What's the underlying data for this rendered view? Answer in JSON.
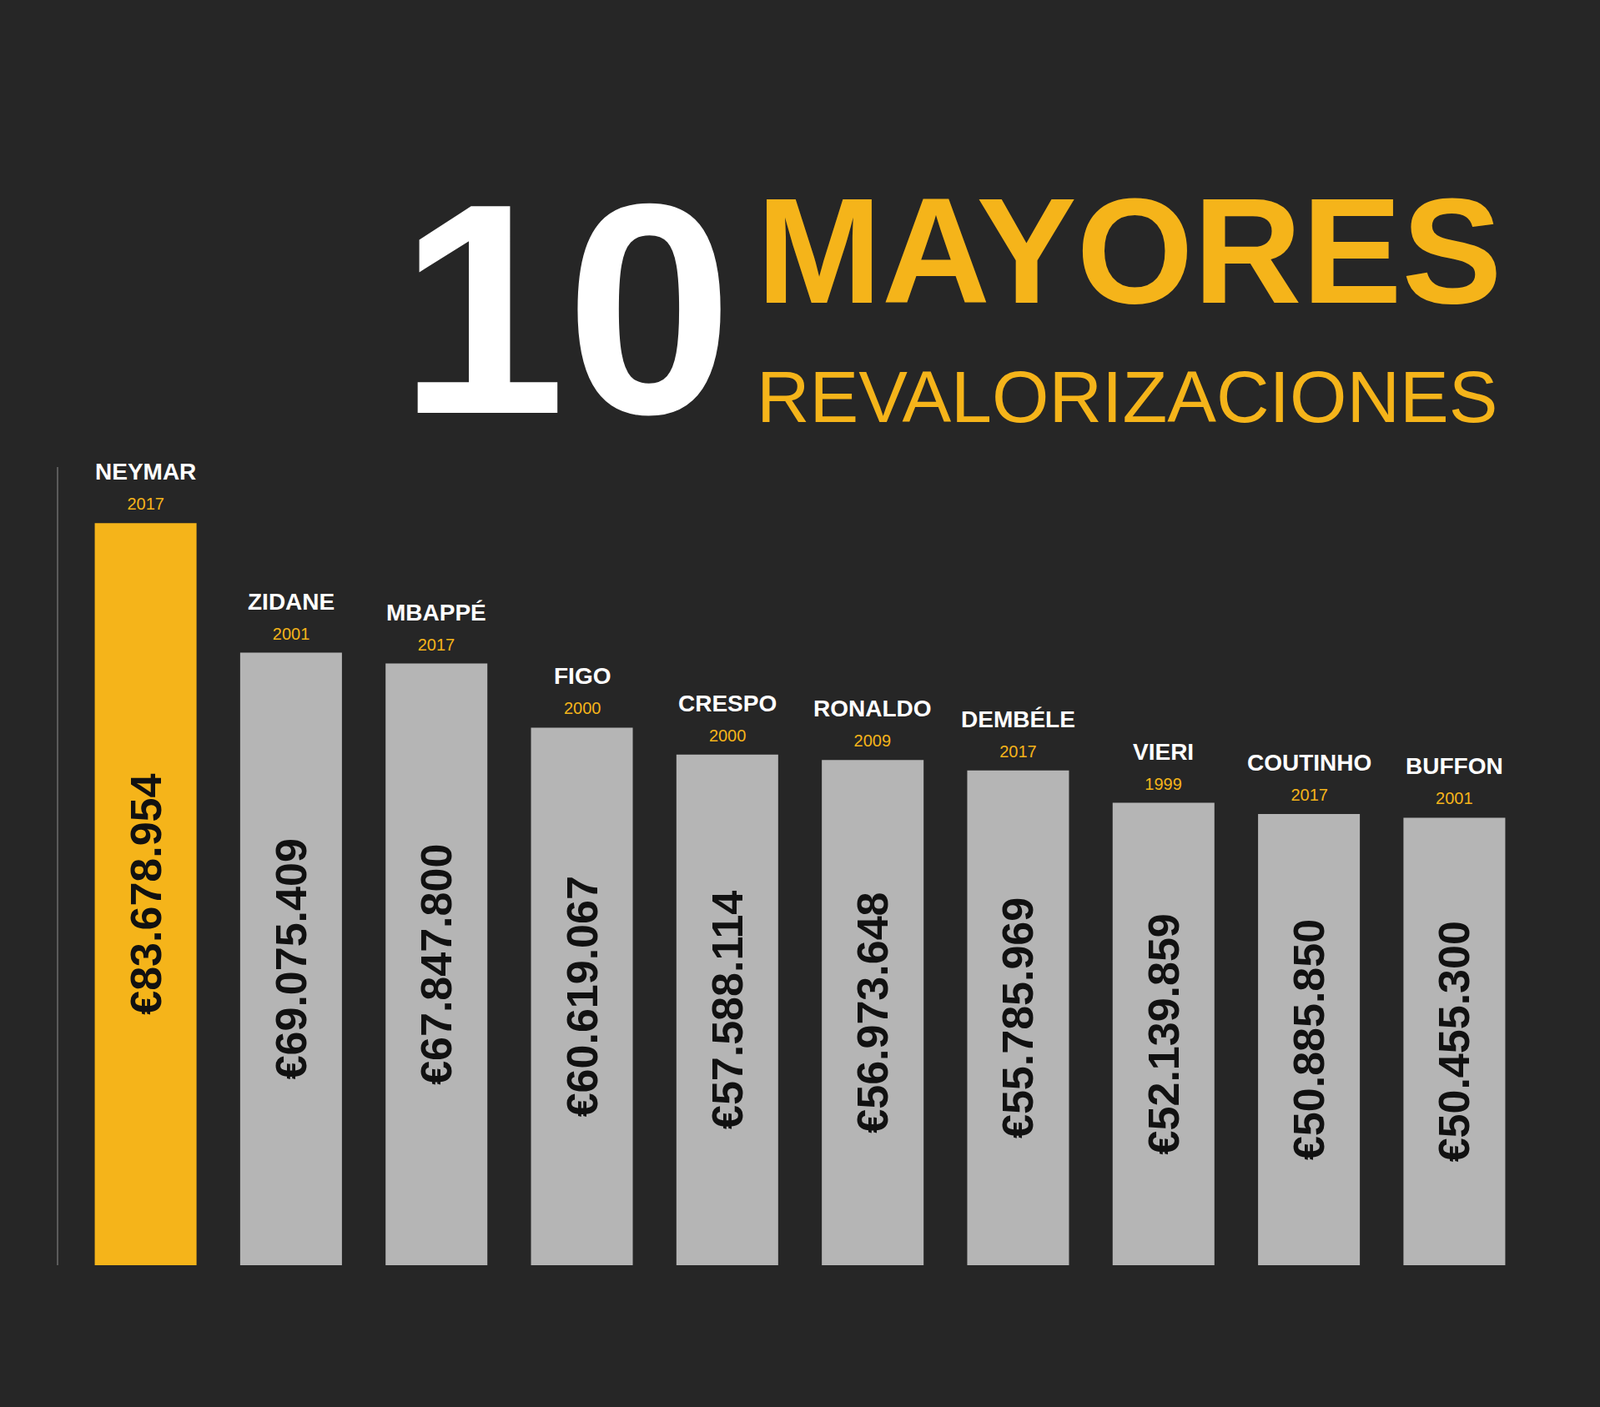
{
  "chart_data": {
    "type": "bar",
    "title": "10 MAYORES REVALORIZACIONES",
    "categories": [
      "NEYMAR",
      "ZIDANE",
      "MBAPPÉ",
      "FIGO",
      "CRESPO",
      "RONALDO",
      "DEMBÉLE",
      "VIERI",
      "COUTINHO",
      "BUFFON"
    ],
    "years": [
      2017,
      2001,
      2017,
      2000,
      2000,
      2009,
      2017,
      1999,
      2017,
      2001
    ],
    "values": [
      83678954,
      69075409,
      67847800,
      60619067,
      57588114,
      56973648,
      55785969,
      52139859,
      50885850,
      50455300
    ],
    "value_labels": [
      "€83.678.954",
      "€69.075.409",
      "€67.847.800",
      "€60.619.067",
      "€57.588.114",
      "€56.973.648",
      "€55.785.969",
      "€52.139.859",
      "€50.885.850",
      "€50.455.300"
    ],
    "colors": [
      "#f5b41a",
      "#b5b5b5",
      "#b5b5b5",
      "#b5b5b5",
      "#b5b5b5",
      "#b5b5b5",
      "#b5b5b5",
      "#b5b5b5",
      "#b5b5b5",
      "#b5b5b5"
    ],
    "ylim": [
      0,
      90000000
    ],
    "yticks": [],
    "data_labels": true,
    "tick_labels": false,
    "grid": false
  }
}
